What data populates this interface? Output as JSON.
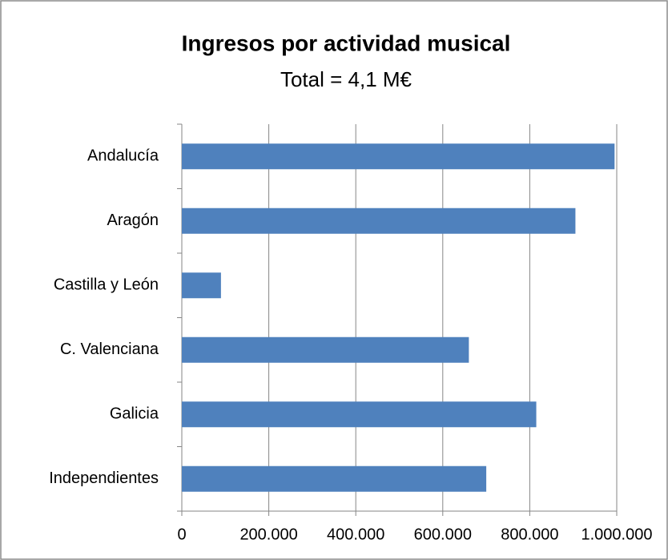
{
  "chart_data": {
    "type": "bar",
    "orientation": "horizontal",
    "title": "Ingresos por actividad musical",
    "subtitle": "Total = 4,1 M€",
    "categories": [
      "Andalucía",
      "Aragón",
      "Castilla y León",
      "C. Valenciana",
      "Galicia",
      "Independientes"
    ],
    "values": [
      995000,
      905000,
      90000,
      660000,
      815000,
      700000
    ],
    "color": "#4f81bd",
    "xlim": [
      0,
      1000000
    ],
    "xticks": [
      0,
      {
        "value": 200000,
        "label": "200.000"
      },
      {
        "value": 400000,
        "label": "400.000"
      },
      {
        "value": 600000,
        "label": "600.000"
      },
      {
        "value": 800000,
        "label": "800.000"
      },
      {
        "value": 1000000,
        "label": "1.000.000"
      }
    ],
    "grid": true
  }
}
